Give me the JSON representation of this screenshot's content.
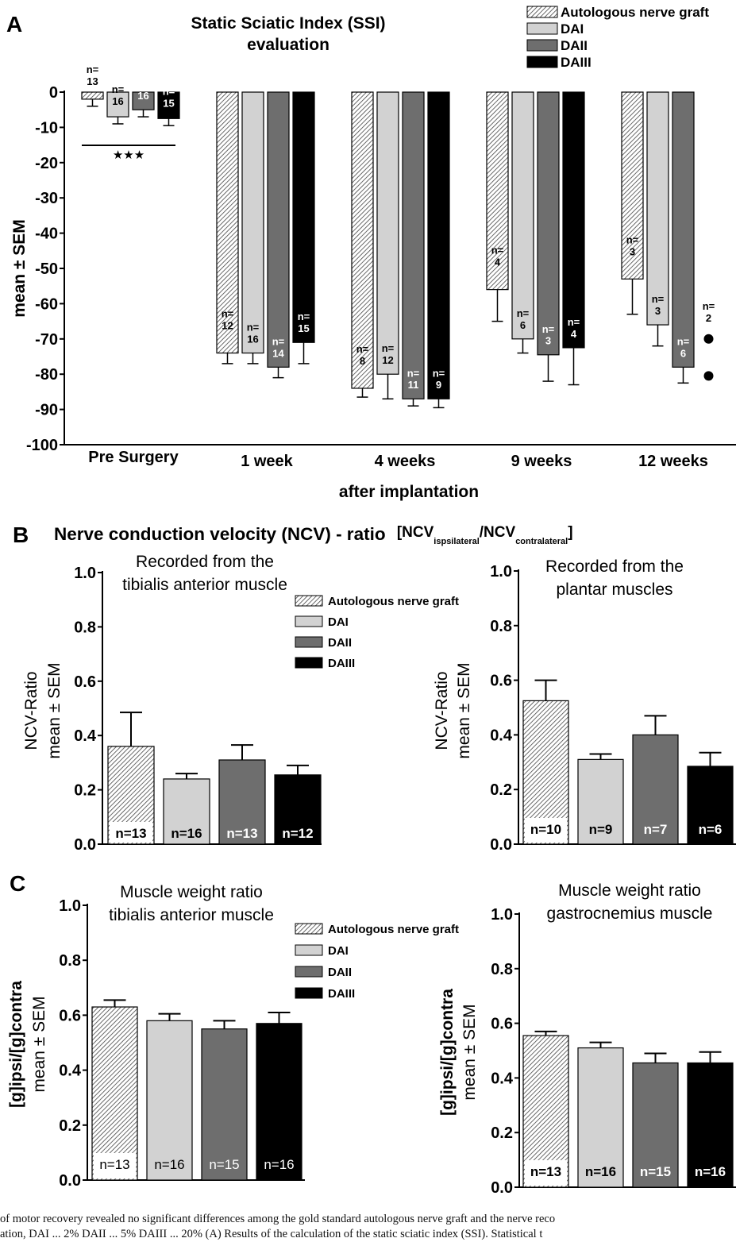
{
  "colors": {
    "autologous": "#ffffff",
    "dai": "#d2d2d2",
    "daii": "#6e6e6e",
    "daiii": "#000000",
    "axis": "#000000"
  },
  "legend": [
    "Autologous nerve graft",
    "DAI",
    "DAII",
    "DAIII"
  ],
  "panelA": {
    "letter": "A",
    "title_line1": "Static Sciatic Index (SSI)",
    "title_line2": "evaluation",
    "significance": "★★★",
    "dot_n": "n=\n2"
  },
  "panelB": {
    "letter": "B",
    "title_main": "Nerve conduction velocity (NCV) - ratio",
    "title_f1": "[NCV",
    "title_sub1": "ispsilateral",
    "title_f2": "/NCV",
    "title_sub2": "contralateral",
    "title_f3": "]"
  },
  "panelC": {
    "letter": "C"
  },
  "chart_data": [
    {
      "type": "bar",
      "title": "Static Sciatic Index (SSI) evaluation",
      "xlabel": "after implantation",
      "ylabel": "mean ± SEM",
      "ylim": [
        -100,
        0
      ],
      "yticks": [
        "0",
        "-10",
        "-20",
        "-30",
        "-40",
        "-50",
        "-60",
        "-70",
        "-80",
        "-90",
        "-100"
      ],
      "categories": [
        "Pre Surgery",
        "1 week",
        "4 weeks",
        "9 weeks",
        "12 weeks"
      ],
      "series": [
        {
          "name": "Autologous nerve graft",
          "values": [
            -2,
            -74,
            -84,
            -56,
            -53
          ],
          "errors": [
            2,
            3,
            2.5,
            9,
            10
          ],
          "n": [
            "n=\n13",
            "n=\n12",
            "n=\n8",
            "n=\n4",
            "n=\n3"
          ]
        },
        {
          "name": "DAI",
          "values": [
            -7,
            -74,
            -80,
            -70,
            -66
          ],
          "errors": [
            2,
            3,
            7,
            4,
            6
          ],
          "n": [
            "n=\n16",
            "n=\n16",
            "n=\n12",
            "n=\n6",
            "n=\n3"
          ]
        },
        {
          "name": "DAII",
          "values": [
            -5,
            -78,
            -87,
            -74.5,
            -78
          ],
          "errors": [
            2,
            3,
            2,
            7.5,
            4.5
          ],
          "n": [
            "n=\n16",
            "n=\n14",
            "n=\n11",
            "n=\n3",
            "n=\n6"
          ]
        },
        {
          "name": "DAIII",
          "values": [
            -7.5,
            -71,
            -87,
            -72.5,
            null
          ],
          "errors": [
            2,
            6,
            2.5,
            10.5,
            null
          ],
          "n": [
            "n=\n15",
            "n=\n15",
            "n=\n9",
            "n=\n4",
            ""
          ]
        }
      ],
      "points_12weeks_DAIII": [
        -70,
        -80.5
      ]
    },
    {
      "type": "bar",
      "title": "Recorded from the tibialis anterior muscle",
      "ylabel_line1": "NCV-Ratio",
      "ylabel_line2": "mean ± SEM",
      "ylim": [
        0,
        1.0
      ],
      "yticks": [
        "0.0",
        "0.2",
        "0.4",
        "0.6",
        "0.8",
        "1.0"
      ],
      "series_names": [
        "Autologous nerve graft",
        "DAI",
        "DAII",
        "DAIII"
      ],
      "values": [
        0.36,
        0.24,
        0.31,
        0.255
      ],
      "errors": [
        0.125,
        0.02,
        0.055,
        0.035
      ],
      "n": [
        "n=13",
        "n=16",
        "n=13",
        "n=12"
      ]
    },
    {
      "type": "bar",
      "title": "Recorded from the plantar muscles",
      "ylabel_line1": "NCV-Ratio",
      "ylabel_line2": "mean ± SEM",
      "ylim": [
        0,
        1.0
      ],
      "yticks": [
        "0.0",
        "0.2",
        "0.4",
        "0.6",
        "0.8",
        "1.0"
      ],
      "series_names": [
        "Autologous nerve graft",
        "DAI",
        "DAII",
        "DAIII"
      ],
      "values": [
        0.525,
        0.31,
        0.4,
        0.285
      ],
      "errors": [
        0.075,
        0.02,
        0.07,
        0.05
      ],
      "n": [
        "n=10",
        "n=9",
        "n=7",
        "n=6"
      ]
    },
    {
      "type": "bar",
      "title": "Muscle weight ratio tibialis anterior muscle",
      "ylabel_line1": "[g]ipsi/[g]contra",
      "ylabel_line2": "mean ± SEM",
      "ylim": [
        0,
        1.0
      ],
      "yticks": [
        "0.0",
        "0.2",
        "0.4",
        "0.6",
        "0.8",
        "1.0"
      ],
      "series_names": [
        "Autologous nerve graft",
        "DAI",
        "DAII",
        "DAIII"
      ],
      "values": [
        0.63,
        0.58,
        0.55,
        0.57
      ],
      "errors": [
        0.025,
        0.025,
        0.03,
        0.04
      ],
      "n": [
        "n=13",
        "n=16",
        "n=15",
        "n=16"
      ]
    },
    {
      "type": "bar",
      "title": "Muscle weight ratio gastrocnemius muscle",
      "ylabel_line1": "[g]ipsi/[g]contra",
      "ylabel_line2": "mean ± SEM",
      "ylim": [
        0,
        1.0
      ],
      "yticks": [
        "0.0",
        "0.2",
        "0.4",
        "0.6",
        "0.8",
        "1.0"
      ],
      "series_names": [
        "Autologous nerve graft",
        "DAI",
        "DAII",
        "DAIII"
      ],
      "values": [
        0.555,
        0.51,
        0.455,
        0.455
      ],
      "errors": [
        0.015,
        0.02,
        0.035,
        0.04
      ],
      "n": [
        "n=13",
        "n=16",
        "n=15",
        "n=16"
      ]
    }
  ],
  "caption": {
    "line1": "of motor recovery revealed no significant differences among the gold standard autologous nerve graft and the nerve reco",
    "line2": "ation, DAI ... 2% DAII ... 5% DAIII ... 20% (A) Results of the calculation of the static sciatic index (SSI). Statistical t"
  }
}
